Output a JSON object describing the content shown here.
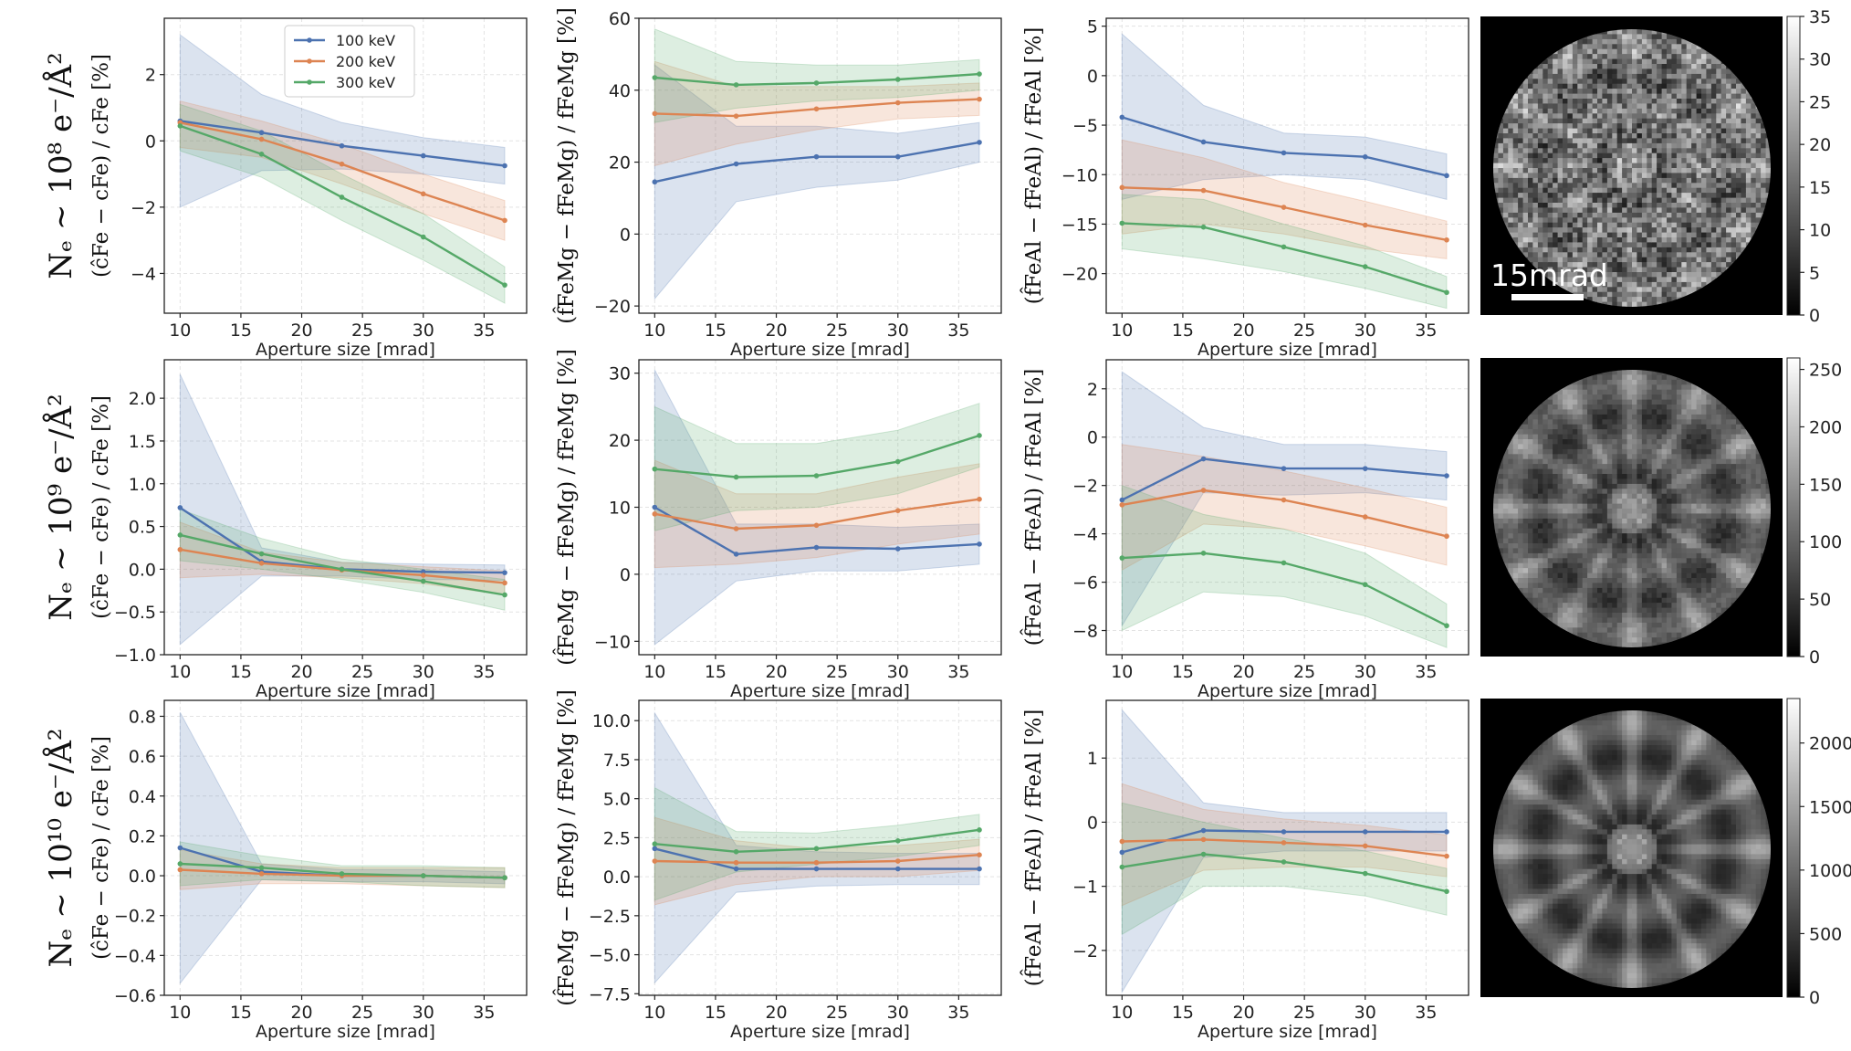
{
  "colors": {
    "s100": "#4c72b0",
    "s200": "#dd8452",
    "s300": "#55a868"
  },
  "labels": {
    "xlabel": "Aperture size [mrad]",
    "row_labels": [
      "Nₑ ∼ 10⁸ e⁻/Å²",
      "Nₑ ∼ 10⁹ e⁻/Å²",
      "Nₑ ∼ 10¹⁰ e⁻/Å²"
    ],
    "col_labels": [
      "(ĉFe − cFe) / cFe  [%]",
      "(f̂FeMg − fFeMg) / fFeMg  [%]",
      "(f̂FeAl − fFeAl) / fFeAl  [%]"
    ],
    "scale_bar": "15mrad"
  },
  "legend": [
    "100 keV",
    "200 keV",
    "300 keV"
  ],
  "chart_data": [
    {
      "type": "line",
      "row": 0,
      "col": 0,
      "xlabel": "Aperture size [mrad]",
      "ylabel": "(ĉFe − cFe)/cFe [%]",
      "xlim": [
        8.7,
        38.5
      ],
      "ylim": [
        -5.2,
        3.7
      ],
      "xticks": [
        10,
        15,
        20,
        25,
        30,
        35
      ],
      "xtick_labels": [
        "10",
        "15",
        "20",
        "25",
        "30",
        "35"
      ],
      "yticks": [
        -4,
        -2,
        0,
        2
      ],
      "ytick_labels": [
        "−4",
        "−2",
        "0",
        "2"
      ],
      "x": [
        10,
        16.7,
        23.3,
        30,
        36.7
      ],
      "series": [
        {
          "name": "100 keV",
          "values": [
            0.6,
            0.25,
            -0.15,
            -0.45,
            -0.75
          ],
          "lower": [
            -2.0,
            -0.9,
            -0.85,
            -1.0,
            -1.3
          ],
          "upper": [
            3.2,
            1.4,
            0.55,
            0.1,
            -0.2
          ]
        },
        {
          "name": "200 keV",
          "values": [
            0.55,
            0.05,
            -0.7,
            -1.6,
            -2.4
          ],
          "lower": [
            -0.2,
            -0.5,
            -1.3,
            -2.2,
            -3.0
          ],
          "upper": [
            1.2,
            0.6,
            -0.1,
            -1.0,
            -1.8
          ]
        },
        {
          "name": "300 keV",
          "values": [
            0.45,
            -0.4,
            -1.7,
            -2.9,
            -4.35
          ],
          "lower": [
            -0.3,
            -1.1,
            -2.4,
            -3.6,
            -4.9
          ],
          "upper": [
            1.1,
            0.3,
            -1.0,
            -2.2,
            -3.8
          ]
        }
      ]
    },
    {
      "type": "line",
      "row": 0,
      "col": 1,
      "xlabel": "Aperture size [mrad]",
      "ylabel": "(f̂FeMg − fFeMg)/fFeMg [%]",
      "xlim": [
        8.7,
        38.5
      ],
      "ylim": [
        -22,
        60
      ],
      "xticks": [
        10,
        15,
        20,
        25,
        30,
        35
      ],
      "xtick_labels": [
        "10",
        "15",
        "20",
        "25",
        "30",
        "35"
      ],
      "yticks": [
        -20,
        0,
        20,
        40,
        60
      ],
      "ytick_labels": [
        "−20",
        "0",
        "20",
        "40",
        "60"
      ],
      "x": [
        10,
        16.7,
        23.3,
        30,
        36.7
      ],
      "series": [
        {
          "name": "100 keV",
          "values": [
            14.5,
            19.5,
            21.5,
            21.5,
            25.5
          ],
          "lower": [
            -18,
            9,
            13,
            15,
            20
          ],
          "upper": [
            47,
            30,
            30,
            28,
            31
          ]
        },
        {
          "name": "200 keV",
          "values": [
            33.5,
            32.8,
            34.8,
            36.5,
            37.5
          ],
          "lower": [
            19,
            25,
            29,
            32,
            33
          ],
          "upper": [
            48,
            41,
            41,
            41,
            42
          ]
        },
        {
          "name": "300 keV",
          "values": [
            43.5,
            41.5,
            42,
            43,
            44.5
          ],
          "lower": [
            31,
            35,
            37,
            38,
            40
          ],
          "upper": [
            57,
            48,
            47,
            47,
            48.5
          ]
        }
      ]
    },
    {
      "type": "line",
      "row": 0,
      "col": 2,
      "xlabel": "Aperture size [mrad]",
      "ylabel": "(f̂FeAl − fFeAl)/fFeAl [%]",
      "xlim": [
        8.7,
        38.5
      ],
      "ylim": [
        -24,
        5.8
      ],
      "xticks": [
        10,
        15,
        20,
        25,
        30,
        35
      ],
      "xtick_labels": [
        "10",
        "15",
        "20",
        "25",
        "30",
        "35"
      ],
      "yticks": [
        -20,
        -15,
        -10,
        -5,
        0,
        5
      ],
      "ytick_labels": [
        "−20",
        "−15",
        "−10",
        "−5",
        "0",
        "5"
      ],
      "x": [
        10,
        16.7,
        23.3,
        30,
        36.7
      ],
      "series": [
        {
          "name": "100 keV",
          "values": [
            -4.2,
            -6.7,
            -7.8,
            -8.2,
            -10.1
          ],
          "lower": [
            -12.5,
            -10.5,
            -10,
            -10.5,
            -12.5
          ],
          "upper": [
            4.2,
            -3.0,
            -5.8,
            -6.2,
            -7.9
          ]
        },
        {
          "name": "200 keV",
          "values": [
            -11.3,
            -11.6,
            -13.3,
            -15.1,
            -16.6
          ],
          "lower": [
            -16,
            -15,
            -16,
            -17.5,
            -18.5
          ],
          "upper": [
            -6.5,
            -8.3,
            -10.8,
            -12.7,
            -14.7
          ]
        },
        {
          "name": "300 keV",
          "values": [
            -14.9,
            -15.3,
            -17.3,
            -19.3,
            -21.9
          ],
          "lower": [
            -17.5,
            -18.5,
            -19.8,
            -21.5,
            -23.5
          ],
          "upper": [
            -12.0,
            -12.5,
            -15.0,
            -17.2,
            -20.3
          ]
        }
      ]
    },
    {
      "type": "line",
      "row": 1,
      "col": 0,
      "xlabel": "Aperture size [mrad]",
      "ylabel": "(ĉFe − cFe)/cFe [%]",
      "xlim": [
        8.7,
        38.5
      ],
      "ylim": [
        -1.0,
        2.45
      ],
      "xticks": [
        10,
        15,
        20,
        25,
        30,
        35
      ],
      "xtick_labels": [
        "10",
        "15",
        "20",
        "25",
        "30",
        "35"
      ],
      "yticks": [
        -1.0,
        -0.5,
        0.0,
        0.5,
        1.0,
        1.5,
        2.0
      ],
      "ytick_labels": [
        "−1.0",
        "−0.5",
        "0.0",
        "0.5",
        "1.0",
        "1.5",
        "2.0"
      ],
      "x": [
        10,
        16.7,
        23.3,
        30,
        36.7
      ],
      "series": [
        {
          "name": "100 keV",
          "values": [
            0.72,
            0.09,
            0.0,
            -0.03,
            -0.04
          ],
          "lower": [
            -0.88,
            -0.08,
            -0.08,
            -0.12,
            -0.13
          ],
          "upper": [
            2.28,
            0.25,
            0.08,
            0.06,
            0.05
          ]
        },
        {
          "name": "200 keV",
          "values": [
            0.23,
            0.07,
            -0.01,
            -0.07,
            -0.16
          ],
          "lower": [
            -0.1,
            -0.06,
            -0.1,
            -0.17,
            -0.3
          ],
          "upper": [
            0.55,
            0.2,
            0.08,
            0.03,
            -0.02
          ]
        },
        {
          "name": "300 keV",
          "values": [
            0.4,
            0.18,
            0.0,
            -0.14,
            -0.3
          ],
          "lower": [
            0.1,
            0.0,
            -0.12,
            -0.27,
            -0.48
          ],
          "upper": [
            0.7,
            0.36,
            0.12,
            0.0,
            -0.12
          ]
        }
      ]
    },
    {
      "type": "line",
      "row": 1,
      "col": 1,
      "xlabel": "Aperture size [mrad]",
      "ylabel": "(f̂FeMg − fFeMg)/fFeMg [%]",
      "xlim": [
        8.7,
        38.5
      ],
      "ylim": [
        -12,
        32
      ],
      "xticks": [
        10,
        15,
        20,
        25,
        30,
        35
      ],
      "xtick_labels": [
        "10",
        "15",
        "20",
        "25",
        "30",
        "35"
      ],
      "yticks": [
        -10,
        0,
        10,
        20,
        30
      ],
      "ytick_labels": [
        "−10",
        "0",
        "10",
        "20",
        "30"
      ],
      "x": [
        10,
        16.7,
        23.3,
        30,
        36.7
      ],
      "series": [
        {
          "name": "100 keV",
          "values": [
            10,
            3,
            4,
            3.8,
            4.5
          ],
          "lower": [
            -10.5,
            -1,
            0.5,
            0.5,
            1.5
          ],
          "upper": [
            30.5,
            7.5,
            7.5,
            7,
            7.5
          ]
        },
        {
          "name": "200 keV",
          "values": [
            9,
            6.8,
            7.3,
            9.5,
            11.2
          ],
          "lower": [
            1,
            1.5,
            2.5,
            4.5,
            6
          ],
          "upper": [
            17,
            12,
            12,
            14.5,
            16.5
          ]
        },
        {
          "name": "300 keV",
          "values": [
            15.7,
            14.5,
            14.7,
            16.8,
            20.7
          ],
          "lower": [
            6.5,
            9.5,
            10,
            12,
            16
          ],
          "upper": [
            25,
            19.5,
            19.5,
            21.5,
            25.5
          ]
        }
      ]
    },
    {
      "type": "line",
      "row": 1,
      "col": 2,
      "xlabel": "Aperture size [mrad]",
      "ylabel": "(f̂FeAl − fFeAl)/fFeAl [%]",
      "xlim": [
        8.7,
        38.5
      ],
      "ylim": [
        -9.0,
        3.2
      ],
      "xticks": [
        10,
        15,
        20,
        25,
        30,
        35
      ],
      "xtick_labels": [
        "10",
        "15",
        "20",
        "25",
        "30",
        "35"
      ],
      "yticks": [
        -8,
        -6,
        -4,
        -2,
        0,
        2
      ],
      "ytick_labels": [
        "−8",
        "−6",
        "−4",
        "−2",
        "0",
        "2"
      ],
      "x": [
        10,
        16.7,
        23.3,
        30,
        36.7
      ],
      "series": [
        {
          "name": "100 keV",
          "values": [
            -2.6,
            -0.9,
            -1.3,
            -1.3,
            -1.6
          ],
          "lower": [
            -7.8,
            -2.3,
            -2.4,
            -2.3,
            -2.6
          ],
          "upper": [
            2.7,
            0.4,
            -0.3,
            -0.3,
            -0.6
          ]
        },
        {
          "name": "200 keV",
          "values": [
            -2.8,
            -2.2,
            -2.6,
            -3.3,
            -4.1
          ],
          "lower": [
            -5.5,
            -3.6,
            -3.8,
            -4.5,
            -5.3
          ],
          "upper": [
            -0.3,
            -0.8,
            -1.4,
            -2.1,
            -2.9
          ]
        },
        {
          "name": "300 keV",
          "values": [
            -5.0,
            -4.8,
            -5.2,
            -6.1,
            -7.8
          ],
          "lower": [
            -8.0,
            -6.4,
            -6.6,
            -7.4,
            -8.7
          ],
          "upper": [
            -2.0,
            -3.2,
            -3.8,
            -4.8,
            -6.9
          ]
        }
      ]
    },
    {
      "type": "line",
      "row": 2,
      "col": 0,
      "xlabel": "Aperture size [mrad]",
      "ylabel": "(ĉFe − cFe)/cFe [%]",
      "xlim": [
        8.7,
        38.5
      ],
      "ylim": [
        -0.6,
        0.88
      ],
      "xticks": [
        10,
        15,
        20,
        25,
        30,
        35
      ],
      "xtick_labels": [
        "10",
        "15",
        "20",
        "25",
        "30",
        "35"
      ],
      "yticks": [
        -0.6,
        -0.4,
        -0.2,
        0.0,
        0.2,
        0.4,
        0.6,
        0.8
      ],
      "ytick_labels": [
        "−0.6",
        "−0.4",
        "−0.2",
        "0.0",
        "0.2",
        "0.4",
        "0.6",
        "0.8"
      ],
      "x": [
        10,
        16.7,
        23.3,
        30,
        36.7
      ],
      "series": [
        {
          "name": "100 keV",
          "values": [
            0.14,
            0.02,
            0.0,
            0.0,
            -0.01
          ],
          "lower": [
            -0.54,
            -0.02,
            -0.03,
            -0.03,
            -0.04
          ],
          "upper": [
            0.82,
            0.06,
            0.03,
            0.03,
            0.02
          ]
        },
        {
          "name": "200 keV",
          "values": [
            0.03,
            0.01,
            0.0,
            0.0,
            -0.01
          ],
          "lower": [
            -0.07,
            -0.04,
            -0.04,
            -0.05,
            -0.06
          ],
          "upper": [
            0.13,
            0.06,
            0.04,
            0.04,
            0.04
          ]
        },
        {
          "name": "300 keV",
          "values": [
            0.06,
            0.04,
            0.01,
            0.0,
            -0.01
          ],
          "lower": [
            -0.05,
            -0.02,
            -0.03,
            -0.05,
            -0.06
          ],
          "upper": [
            0.17,
            0.1,
            0.05,
            0.05,
            0.04
          ]
        }
      ]
    },
    {
      "type": "line",
      "row": 2,
      "col": 1,
      "xlabel": "Aperture size [mrad]",
      "ylabel": "(f̂FeMg − fFeMg)/fFeMg [%]",
      "xlim": [
        8.7,
        38.5
      ],
      "ylim": [
        -7.6,
        11.3
      ],
      "xticks": [
        10,
        15,
        20,
        25,
        30,
        35
      ],
      "xtick_labels": [
        "10",
        "15",
        "20",
        "25",
        "30",
        "35"
      ],
      "yticks": [
        -7.5,
        -5.0,
        -2.5,
        0.0,
        2.5,
        5.0,
        7.5,
        10.0
      ],
      "ytick_labels": [
        "−7.5",
        "−5.0",
        "−2.5",
        "0.0",
        "2.5",
        "5.0",
        "7.5",
        "10.0"
      ],
      "x": [
        10,
        16.7,
        23.3,
        30,
        36.7
      ],
      "series": [
        {
          "name": "100 keV",
          "values": [
            1.8,
            0.5,
            0.5,
            0.5,
            0.5
          ],
          "lower": [
            -6.8,
            -1.0,
            -0.6,
            -0.5,
            -0.5
          ],
          "upper": [
            10.5,
            2.0,
            1.6,
            1.5,
            1.5
          ]
        },
        {
          "name": "200 keV",
          "values": [
            1.0,
            0.9,
            0.9,
            1.0,
            1.4
          ],
          "lower": [
            -1.8,
            -0.5,
            0.0,
            0.0,
            0.4
          ],
          "upper": [
            3.8,
            2.3,
            1.8,
            2.0,
            2.4
          ]
        },
        {
          "name": "300 keV",
          "values": [
            2.1,
            1.6,
            1.8,
            2.3,
            3.0
          ],
          "lower": [
            -1.5,
            0.3,
            0.8,
            1.3,
            2.0
          ],
          "upper": [
            5.7,
            2.9,
            2.8,
            3.3,
            4.0
          ]
        }
      ]
    },
    {
      "type": "line",
      "row": 2,
      "col": 2,
      "xlabel": "Aperture size [mrad]",
      "ylabel": "(f̂FeAl − fFeAl)/fFeAl [%]",
      "xlim": [
        8.7,
        38.5
      ],
      "ylim": [
        -2.7,
        1.9
      ],
      "xticks": [
        10,
        15,
        20,
        25,
        30,
        35
      ],
      "xtick_labels": [
        "10",
        "15",
        "20",
        "25",
        "30",
        "35"
      ],
      "yticks": [
        -2,
        -1,
        0,
        1
      ],
      "ytick_labels": [
        "−2",
        "−1",
        "0",
        "1"
      ],
      "x": [
        10,
        16.7,
        23.3,
        30,
        36.7
      ],
      "series": [
        {
          "name": "100 keV",
          "values": [
            -0.47,
            -0.13,
            -0.15,
            -0.15,
            -0.15
          ],
          "lower": [
            -2.65,
            -0.55,
            -0.45,
            -0.45,
            -0.45
          ],
          "upper": [
            1.75,
            0.3,
            0.15,
            0.15,
            0.15
          ]
        },
        {
          "name": "200 keV",
          "values": [
            -0.3,
            -0.27,
            -0.32,
            -0.37,
            -0.53
          ],
          "lower": [
            -1.3,
            -0.75,
            -0.7,
            -0.7,
            -0.85
          ],
          "upper": [
            0.6,
            0.2,
            0.05,
            -0.05,
            -0.2
          ]
        },
        {
          "name": "300 keV",
          "values": [
            -0.7,
            -0.5,
            -0.62,
            -0.8,
            -1.08
          ],
          "lower": [
            -1.75,
            -1.0,
            -1.0,
            -1.15,
            -1.45
          ],
          "upper": [
            0.3,
            0.0,
            -0.25,
            -0.45,
            -0.72
          ]
        }
      ]
    }
  ],
  "colorbars": [
    {
      "row": 0,
      "vmin": 0,
      "vmax": 35,
      "ticks": [
        0,
        5,
        10,
        15,
        20,
        25,
        30,
        35
      ],
      "tick_labels": [
        "0",
        "5",
        "10",
        "15",
        "20",
        "25",
        "30",
        "35"
      ],
      "noise": 0.45,
      "level": 0.55,
      "seed": 7
    },
    {
      "row": 1,
      "vmin": 0,
      "vmax": 260,
      "ticks": [
        0,
        50,
        100,
        150,
        200,
        250
      ],
      "tick_labels": [
        "0",
        "50",
        "100",
        "150",
        "200",
        "250"
      ],
      "noise": 0.12,
      "level": 0.5,
      "seed": 11
    },
    {
      "row": 2,
      "vmin": 0,
      "vmax": 2350,
      "ticks": [
        0,
        500,
        1000,
        1500,
        2000
      ],
      "tick_labels": [
        "0",
        "500",
        "1000",
        "1500",
        "2000"
      ],
      "noise": 0.03,
      "level": 0.5,
      "seed": 13
    }
  ]
}
